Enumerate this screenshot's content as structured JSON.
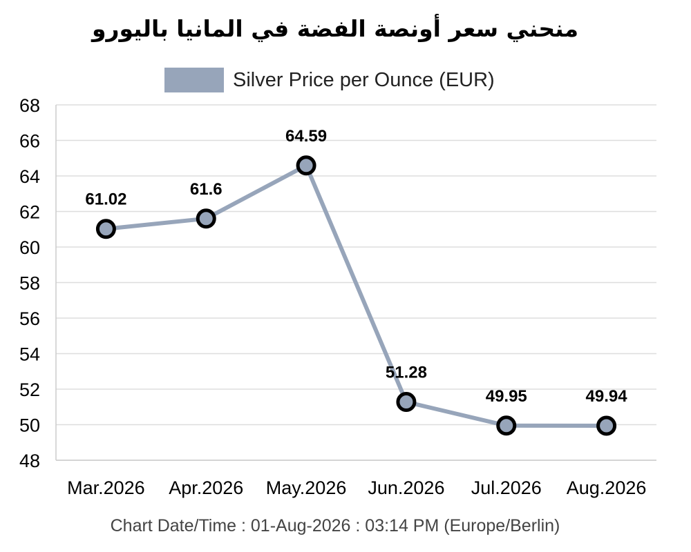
{
  "chart_data": {
    "type": "line",
    "title": "منحني سعر أونصة الفضة في المانيا باليورو",
    "categories": [
      "Mar.2026",
      "Apr.2026",
      "May.2026",
      "Jun.2026",
      "Jul.2026",
      "Aug.2026"
    ],
    "series": [
      {
        "name": "Silver Price per Ounce (EUR)",
        "values": [
          61.02,
          61.6,
          64.59,
          51.28,
          49.95,
          49.94
        ],
        "labels": [
          "61.02",
          "61.6",
          "64.59",
          "51.28",
          "49.95",
          "49.94"
        ]
      }
    ],
    "xlabel": "",
    "ylabel": "",
    "ylim": [
      48,
      68
    ],
    "yticks": [
      48,
      50,
      52,
      54,
      56,
      58,
      60,
      62,
      64,
      66,
      68
    ],
    "grid": true,
    "legend": "top-center",
    "colors": {
      "line": "#97a5ba",
      "marker_fill": "#97a5ba",
      "marker_stroke": "#000000",
      "grid": "#dddddd"
    }
  },
  "footer": {
    "text": "Chart Date/Time : 01-Aug-2026 : 03:14 PM (Europe/Berlin)"
  }
}
